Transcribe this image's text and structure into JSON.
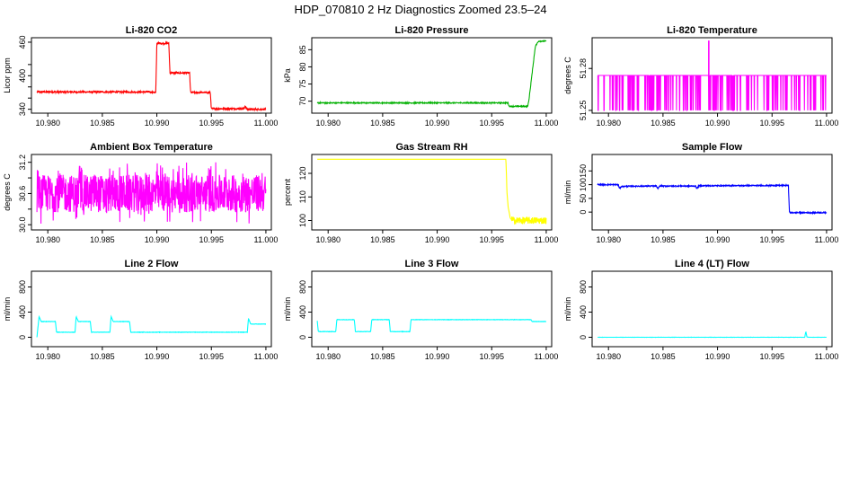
{
  "figure": {
    "title": "HDP_070810  2 Hz Diagnostics Zoomed 23.5–24"
  },
  "chart_data": [
    {
      "type": "line",
      "title": "Li-820 CO2",
      "ylabel": "Licor ppm",
      "color": "#ff0000",
      "xlim": [
        10.9785,
        11.0005
      ],
      "ylim": [
        333,
        468
      ],
      "xticks": [
        "10.980",
        "10.985",
        "10.990",
        "10.995",
        "11.000"
      ],
      "xtick_values": [
        10.98,
        10.985,
        10.99,
        10.995,
        11.0
      ],
      "yticks": [
        "340",
        "",
        "",
        "400",
        "",
        "460"
      ],
      "ytick_values": [
        340,
        360,
        380,
        400,
        420,
        460
      ],
      "noise": 1.5,
      "series": [
        {
          "x": [
            10.979,
            10.9895,
            10.9899,
            10.99,
            10.9911,
            10.9912,
            10.993,
            10.9931,
            10.9949,
            10.995,
            10.998,
            10.9981,
            10.9982,
            10.9983,
            11.0
          ],
          "y": [
            371,
            371,
            370,
            458,
            458,
            405,
            405,
            370,
            370,
            341,
            341,
            346,
            341,
            340,
            340
          ]
        }
      ]
    },
    {
      "type": "line",
      "title": "Li-820 Pressure",
      "ylabel": "kPa",
      "color": "#00b000",
      "xlim": [
        10.9785,
        11.0005
      ],
      "ylim": [
        66.5,
        88.5
      ],
      "xticks": [
        "10.980",
        "10.985",
        "10.990",
        "10.995",
        "11.000"
      ],
      "xtick_values": [
        10.98,
        10.985,
        10.99,
        10.995,
        11.0
      ],
      "yticks": [
        "70",
        "75",
        "80",
        "85"
      ],
      "ytick_values": [
        70,
        75,
        80,
        85
      ],
      "noise": 0.15,
      "series": [
        {
          "x": [
            10.979,
            10.9965,
            10.9966,
            10.9983,
            10.9984,
            10.9987,
            10.999,
            10.9993,
            11.0
          ],
          "y": [
            69.5,
            69.5,
            68.5,
            68.5,
            70,
            78,
            86,
            87.5,
            87.5
          ]
        }
      ]
    },
    {
      "type": "line",
      "title": "Li-820 Temperature",
      "ylabel": "degrees C",
      "color": "#ff00ff",
      "xlim": [
        10.9785,
        11.0005
      ],
      "ylim": [
        51.248,
        51.302
      ],
      "xticks": [
        "10.980",
        "10.985",
        "10.990",
        "10.995",
        "11.000"
      ],
      "xtick_values": [
        10.98,
        10.985,
        10.99,
        10.995,
        11.0
      ],
      "yticks": [
        "51.25",
        "51.28"
      ],
      "ytick_values": [
        51.25,
        51.28
      ],
      "binary_levels": [
        51.25,
        51.275
      ],
      "spike": {
        "x": 10.9892,
        "y": 51.3
      },
      "series": [
        {
          "x": [
            10.979,
            11.0
          ],
          "y": [
            51.275,
            51.275
          ]
        }
      ]
    },
    {
      "type": "line",
      "title": "Ambient Box Temperature",
      "ylabel": "degrees C",
      "color": "#ff00ff",
      "xlim": [
        10.9785,
        11.0005
      ],
      "ylim": [
        29.9,
        31.35
      ],
      "xticks": [
        "10.980",
        "10.985",
        "10.990",
        "10.995",
        "11.000"
      ],
      "xtick_values": [
        10.98,
        10.985,
        10.99,
        10.995,
        11.0
      ],
      "yticks": [
        "30.0",
        "",
        "30.6",
        "",
        "31.2"
      ],
      "ytick_values": [
        30.0,
        30.3,
        30.6,
        30.9,
        31.2
      ],
      "noise_band": [
        30.0,
        31.2
      ],
      "series": [
        {
          "x": [
            10.979,
            11.0
          ],
          "y": [
            30.6,
            30.6
          ]
        }
      ]
    },
    {
      "type": "line",
      "title": "Gas Stream RH",
      "ylabel": "percent",
      "color": "#ffff00",
      "xlim": [
        10.9785,
        11.0005
      ],
      "ylim": [
        96,
        128
      ],
      "xticks": [
        "10.980",
        "10.985",
        "10.990",
        "10.995",
        "11.000"
      ],
      "xtick_values": [
        10.98,
        10.985,
        10.99,
        10.995,
        11.0
      ],
      "yticks": [
        "100",
        "110",
        "120"
      ],
      "ytick_values": [
        100,
        110,
        120
      ],
      "noise_after": {
        "x": 10.9968,
        "amp": 1.5
      },
      "series": [
        {
          "x": [
            10.979,
            10.9963,
            10.9964,
            10.9965,
            10.9967,
            10.997,
            11.0
          ],
          "y": [
            126,
            126,
            112,
            106,
            101,
            100,
            100
          ]
        }
      ]
    },
    {
      "type": "line",
      "title": "Sample Flow",
      "ylabel": "ml/min",
      "color": "#0000ff",
      "xlim": [
        10.9785,
        11.0005
      ],
      "ylim": [
        -65,
        210
      ],
      "xticks": [
        "10.980",
        "10.985",
        "10.990",
        "10.995",
        "11.000"
      ],
      "xtick_values": [
        10.98,
        10.985,
        10.99,
        10.995,
        11.0
      ],
      "yticks": [
        "0",
        "50",
        "100",
        "150"
      ],
      "ytick_values": [
        0,
        50,
        100,
        150
      ],
      "noise": 2,
      "series": [
        {
          "x": [
            10.979,
            10.9809,
            10.981,
            10.9812,
            10.9844,
            10.9845,
            10.9847,
            10.988,
            10.9881,
            10.9883,
            10.9965,
            10.9966,
            10.9967,
            11.0
          ],
          "y": [
            100,
            100,
            86,
            94,
            95,
            85,
            95,
            95,
            86,
            96,
            97,
            -2,
            -2,
            -2
          ]
        }
      ]
    },
    {
      "type": "line",
      "title": "Line 2 Flow",
      "ylabel": "ml/min",
      "color": "#00ffff",
      "xlim": [
        10.9785,
        11.0005
      ],
      "ylim": [
        -150,
        1050
      ],
      "xticks": [
        "10.980",
        "10.985",
        "10.990",
        "10.995",
        "11.000"
      ],
      "xtick_values": [
        10.98,
        10.985,
        10.99,
        10.995,
        11.0
      ],
      "yticks": [
        "0",
        "400",
        "800"
      ],
      "ytick_values": [
        0,
        400,
        800
      ],
      "noise": 3,
      "series": [
        {
          "x": [
            10.979,
            10.9792,
            10.9794,
            10.9807,
            10.9808,
            10.9825,
            10.9826,
            10.9828,
            10.9839,
            10.984,
            10.9857,
            10.9858,
            10.986,
            10.9875,
            10.9876,
            10.9983,
            10.9984,
            10.9986,
            11.0
          ],
          "y": [
            0,
            330,
            250,
            250,
            80,
            80,
            330,
            250,
            250,
            80,
            80,
            330,
            250,
            250,
            80,
            80,
            300,
            210,
            210
          ]
        }
      ]
    },
    {
      "type": "line",
      "title": "Line 3 Flow",
      "ylabel": "ml/min",
      "color": "#00ffff",
      "xlim": [
        10.9785,
        11.0005
      ],
      "ylim": [
        -150,
        1050
      ],
      "xticks": [
        "10.980",
        "10.985",
        "10.990",
        "10.995",
        "11.000"
      ],
      "xtick_values": [
        10.98,
        10.985,
        10.99,
        10.995,
        11.0
      ],
      "yticks": [
        "0",
        "400",
        "800"
      ],
      "ytick_values": [
        0,
        400,
        800
      ],
      "noise": 3,
      "series": [
        {
          "x": [
            10.979,
            10.9791,
            10.9807,
            10.9808,
            10.9824,
            10.9825,
            10.9839,
            10.984,
            10.9856,
            10.9857,
            10.9875,
            10.9876,
            10.9986,
            10.9987,
            11.0
          ],
          "y": [
            260,
            90,
            90,
            280,
            280,
            90,
            90,
            280,
            280,
            90,
            90,
            280,
            280,
            250,
            250
          ]
        }
      ]
    },
    {
      "type": "line",
      "title": "Line 4 (LT) Flow",
      "ylabel": "ml/min",
      "color": "#00ffff",
      "xlim": [
        10.9785,
        11.0005
      ],
      "ylim": [
        -150,
        1050
      ],
      "xticks": [
        "10.980",
        "10.985",
        "10.990",
        "10.995",
        "11.000"
      ],
      "xtick_values": [
        10.98,
        10.985,
        10.99,
        10.995,
        11.0
      ],
      "yticks": [
        "0",
        "400",
        "800"
      ],
      "ytick_values": [
        0,
        400,
        800
      ],
      "noise": 1,
      "series": [
        {
          "x": [
            10.979,
            10.998,
            10.9981,
            10.9982,
            10.9984,
            11.0
          ],
          "y": [
            0,
            0,
            90,
            5,
            0,
            0
          ]
        }
      ]
    }
  ]
}
